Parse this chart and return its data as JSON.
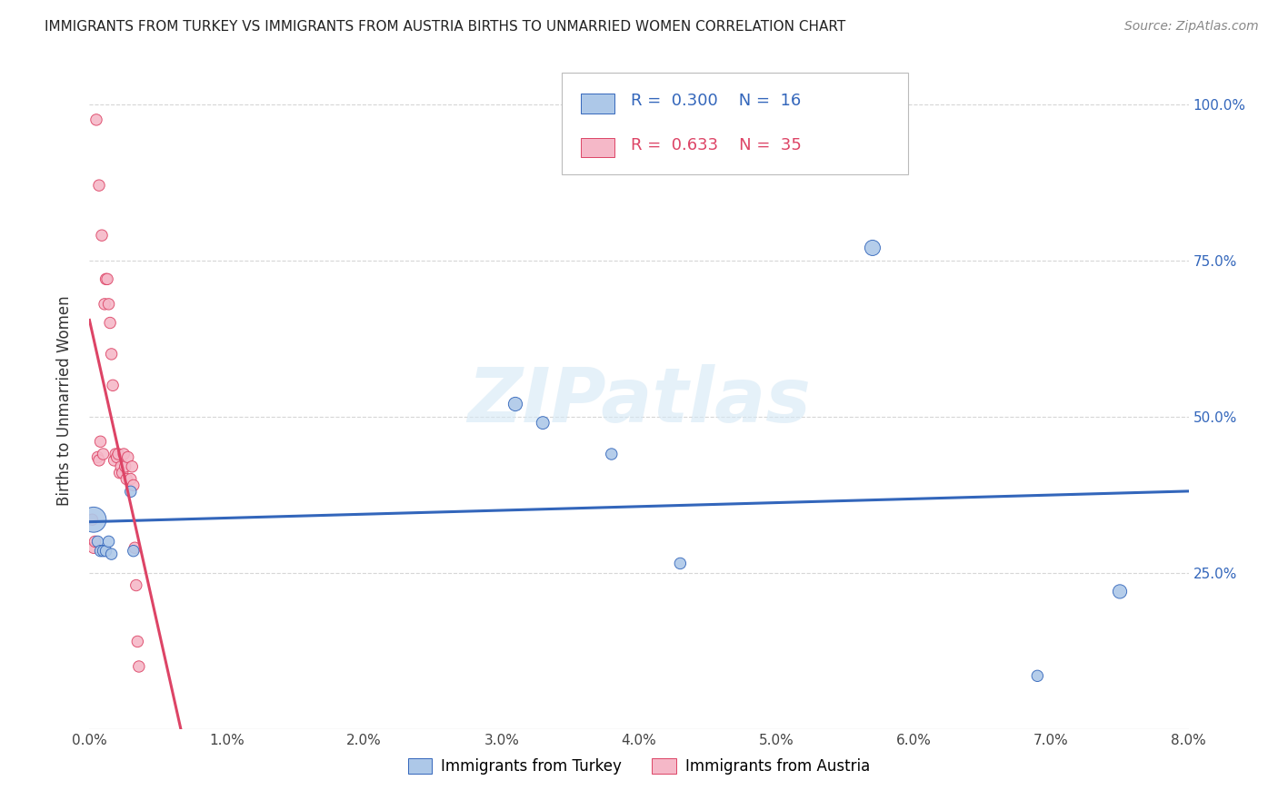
{
  "title": "IMMIGRANTS FROM TURKEY VS IMMIGRANTS FROM AUSTRIA BIRTHS TO UNMARRIED WOMEN CORRELATION CHART",
  "source": "Source: ZipAtlas.com",
  "ylabel": "Births to Unmarried Women",
  "ytick_labels": [
    "25.0%",
    "50.0%",
    "75.0%",
    "100.0%"
  ],
  "ytick_values": [
    0.25,
    0.5,
    0.75,
    1.0
  ],
  "xmin": 0.0,
  "xmax": 0.08,
  "ymin": 0.0,
  "ymax": 1.05,
  "legend_label_blue": "Immigrants from Turkey",
  "legend_label_pink": "Immigrants from Austria",
  "legend_R_blue": "0.300",
  "legend_N_blue": "16",
  "legend_R_pink": "0.633",
  "legend_N_pink": "35",
  "watermark": "ZIPatlas",
  "blue_color": "#adc8e8",
  "pink_color": "#f5b8c8",
  "line_blue": "#3366bb",
  "line_pink": "#dd4466",
  "turkey_x": [
    0.0003,
    0.0006,
    0.0008,
    0.001,
    0.0012,
    0.0014,
    0.0016,
    0.003,
    0.0032,
    0.031,
    0.033,
    0.038,
    0.043,
    0.057,
    0.069,
    0.075
  ],
  "turkey_y": [
    0.335,
    0.3,
    0.285,
    0.285,
    0.285,
    0.3,
    0.28,
    0.38,
    0.285,
    0.52,
    0.49,
    0.44,
    0.265,
    0.77,
    0.085,
    0.22
  ],
  "turkey_size": [
    400,
    80,
    80,
    80,
    80,
    80,
    80,
    80,
    80,
    120,
    100,
    80,
    80,
    150,
    80,
    120
  ],
  "austria_x": [
    0.0002,
    0.0003,
    0.0004,
    0.0005,
    0.0006,
    0.0007,
    0.0007,
    0.0008,
    0.0009,
    0.001,
    0.0011,
    0.0012,
    0.0013,
    0.0014,
    0.0015,
    0.0016,
    0.0017,
    0.0018,
    0.0019,
    0.002,
    0.0021,
    0.0022,
    0.0023,
    0.0024,
    0.0025,
    0.0026,
    0.0027,
    0.0028,
    0.003,
    0.0031,
    0.0032,
    0.0033,
    0.0034,
    0.0035,
    0.0036
  ],
  "austria_y": [
    0.335,
    0.29,
    0.3,
    0.975,
    0.435,
    0.43,
    0.87,
    0.46,
    0.79,
    0.44,
    0.68,
    0.72,
    0.72,
    0.68,
    0.65,
    0.6,
    0.55,
    0.43,
    0.44,
    0.435,
    0.44,
    0.41,
    0.42,
    0.41,
    0.44,
    0.42,
    0.4,
    0.435,
    0.4,
    0.42,
    0.39,
    0.29,
    0.23,
    0.14,
    0.1
  ],
  "austria_size": [
    80,
    80,
    80,
    80,
    80,
    80,
    80,
    80,
    80,
    80,
    80,
    80,
    80,
    80,
    80,
    80,
    80,
    80,
    80,
    80,
    80,
    80,
    80,
    80,
    80,
    80,
    80,
    80,
    80,
    80,
    80,
    80,
    80,
    80,
    80
  ]
}
